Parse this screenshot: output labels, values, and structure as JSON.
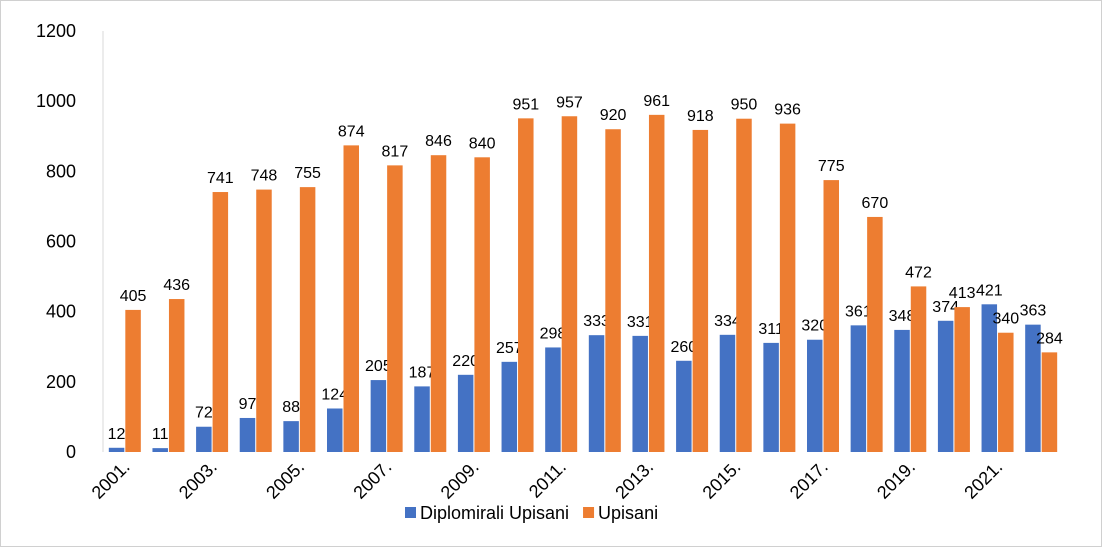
{
  "chart_data": {
    "type": "bar",
    "categories": [
      "2001.",
      null,
      "2003.",
      null,
      "2005.",
      null,
      "2007.",
      null,
      "2009.",
      null,
      "2011.",
      null,
      "2013.",
      null,
      "2015.",
      null,
      "2017.",
      null,
      "2019.",
      null,
      "2021.",
      null
    ],
    "series": [
      {
        "name": "Diplomirali Upisani",
        "color": "#4472c4",
        "values": [
          12,
          11,
          72,
          97,
          88,
          124,
          205,
          187,
          220,
          257,
          298,
          333,
          331,
          260,
          334,
          311,
          320,
          361,
          348,
          374,
          421,
          363
        ]
      },
      {
        "name": "Upisani",
        "color": "#ed7d31",
        "values": [
          405,
          436,
          741,
          748,
          755,
          874,
          817,
          846,
          840,
          951,
          957,
          920,
          961,
          918,
          950,
          936,
          775,
          670,
          472,
          413,
          340,
          284
        ]
      }
    ],
    "ylim": [
      0,
      1200
    ],
    "yticks": [
      0,
      200,
      400,
      600,
      800,
      1000,
      1200
    ],
    "grid": false,
    "legend": "bottom"
  }
}
